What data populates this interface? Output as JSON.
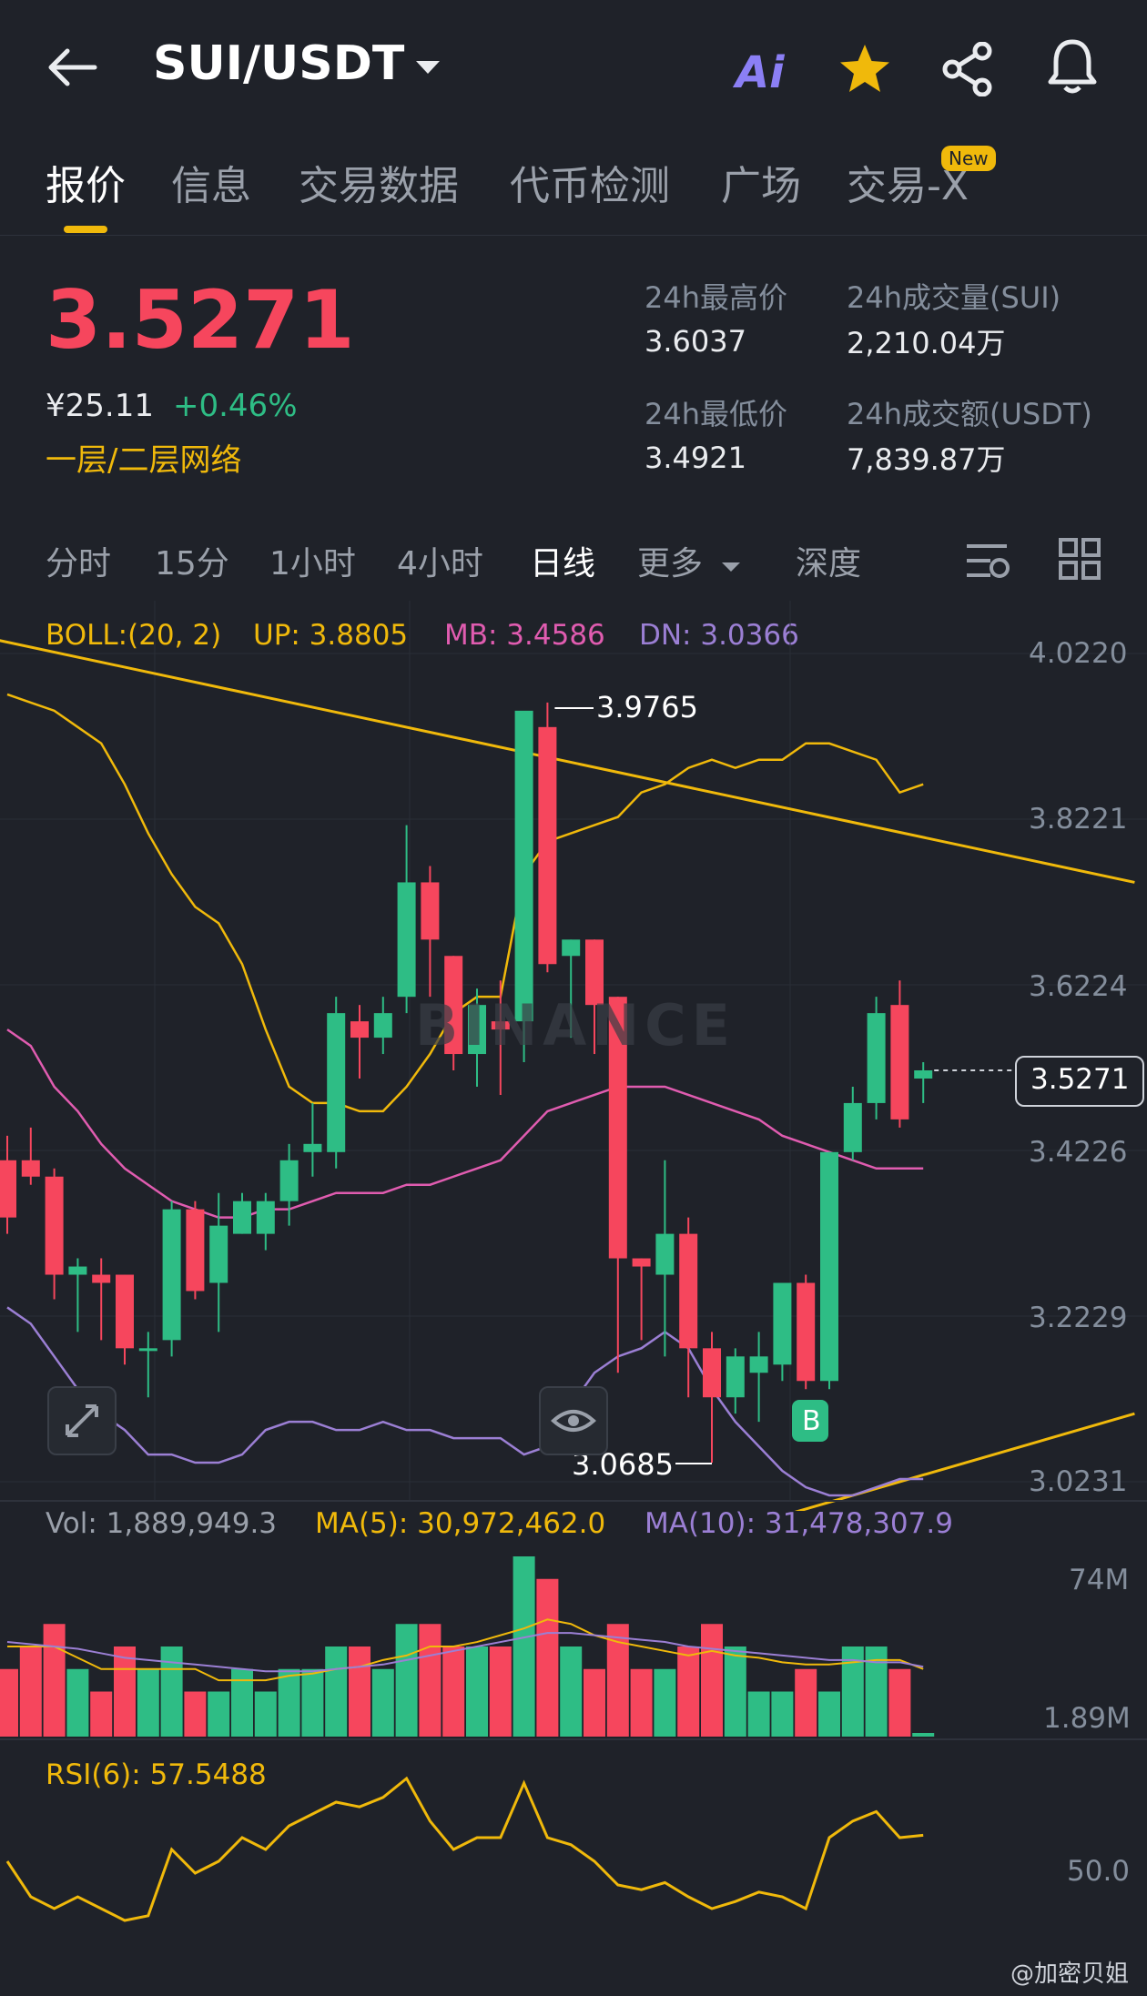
{
  "header": {
    "pair": "SUI/USDT",
    "ai_label": "Ai"
  },
  "tabs": [
    {
      "label": "报价",
      "active": true
    },
    {
      "label": "信息"
    },
    {
      "label": "交易数据"
    },
    {
      "label": "代币检测"
    },
    {
      "label": "广场"
    },
    {
      "label": "交易-X"
    }
  ],
  "new_badge": "New",
  "ticker": {
    "price": "3.5271",
    "cny": "¥25.11",
    "change": "+0.46%",
    "network": "一层/二层网络",
    "high_label": "24h最高价",
    "high_value": "3.6037",
    "low_label": "24h最低价",
    "low_value": "3.4921",
    "vol_sui_label": "24h成交量(SUI)",
    "vol_sui_value": "2,210.04万",
    "vol_usdt_label": "24h成交额(USDT)",
    "vol_usdt_value": "7,839.87万"
  },
  "timeframes": [
    {
      "label": "分时"
    },
    {
      "label": "15分"
    },
    {
      "label": "1小时"
    },
    {
      "label": "4小时"
    },
    {
      "label": "日线",
      "active": true
    },
    {
      "label": "更多"
    },
    {
      "label": "深度"
    }
  ],
  "boll": {
    "label": "BOLL:(20, 2)",
    "up": "UP: 3.8805",
    "mb": "MB: 3.4586",
    "dn": "DN: 3.0366"
  },
  "price_axis": [
    "4.0220",
    "3.8221",
    "3.6224",
    "3.4226",
    "3.2229",
    "3.0231"
  ],
  "current_price_tag": "3.5271",
  "annotations": {
    "high": "3.9765",
    "low": "3.0685",
    "buy_marker": "B"
  },
  "watermark_text": "BINANCE",
  "volume": {
    "vol": "Vol: 1,889,949.3",
    "ma5": "MA(5): 30,972,462.0",
    "ma10": "MA(10): 31,478,307.9",
    "axis_top": "74M",
    "axis_bottom": "1.89M"
  },
  "rsi": {
    "label": "RSI(6): 57.5488",
    "axis_mid": "50.0"
  },
  "footer_watermark": "@加密贝姐",
  "colors": {
    "up": "#2ebd85",
    "down": "#f6465d",
    "accent": "#f0b90b",
    "mb": "#e05cb0",
    "dn": "#9b7fd4",
    "background": "#1f2229"
  },
  "chart_data": {
    "type": "candlestick",
    "ohlc": [
      {
        "o": 3.42,
        "h": 3.45,
        "c": 3.35,
        "l": 3.33
      },
      {
        "o": 3.42,
        "h": 3.46,
        "c": 3.4,
        "l": 3.39
      },
      {
        "o": 3.4,
        "h": 3.41,
        "c": 3.28,
        "l": 3.25
      },
      {
        "o": 3.28,
        "h": 3.3,
        "c": 3.29,
        "l": 3.21
      },
      {
        "o": 3.28,
        "h": 3.3,
        "c": 3.27,
        "l": 3.2
      },
      {
        "o": 3.28,
        "h": 3.28,
        "c": 3.19,
        "l": 3.17
      },
      {
        "o": 3.19,
        "h": 3.21,
        "c": 3.19,
        "l": 3.13
      },
      {
        "o": 3.2,
        "h": 3.37,
        "c": 3.36,
        "l": 3.18
      },
      {
        "o": 3.36,
        "h": 3.37,
        "c": 3.26,
        "l": 3.25
      },
      {
        "o": 3.27,
        "h": 3.38,
        "c": 3.34,
        "l": 3.21
      },
      {
        "o": 3.33,
        "h": 3.38,
        "c": 3.37,
        "l": 3.33
      },
      {
        "o": 3.33,
        "h": 3.38,
        "c": 3.37,
        "l": 3.31
      },
      {
        "o": 3.37,
        "h": 3.44,
        "c": 3.42,
        "l": 3.34
      },
      {
        "o": 3.43,
        "h": 3.49,
        "c": 3.44,
        "l": 3.4
      },
      {
        "o": 3.43,
        "h": 3.62,
        "c": 3.6,
        "l": 3.41
      },
      {
        "o": 3.59,
        "h": 3.61,
        "c": 3.57,
        "l": 3.52
      },
      {
        "o": 3.57,
        "h": 3.62,
        "c": 3.6,
        "l": 3.55
      },
      {
        "o": 3.62,
        "h": 3.83,
        "c": 3.76,
        "l": 3.6
      },
      {
        "o": 3.76,
        "h": 3.78,
        "c": 3.69,
        "l": 3.62
      },
      {
        "o": 3.67,
        "h": 3.67,
        "c": 3.55,
        "l": 3.53
      },
      {
        "o": 3.55,
        "h": 3.63,
        "c": 3.61,
        "l": 3.51
      },
      {
        "o": 3.59,
        "h": 3.64,
        "c": 3.58,
        "l": 3.5
      },
      {
        "o": 3.59,
        "h": 3.96,
        "c": 3.97,
        "l": 3.54
      },
      {
        "o": 3.95,
        "h": 3.98,
        "c": 3.66,
        "l": 3.65
      },
      {
        "o": 3.67,
        "h": 3.69,
        "c": 3.69,
        "l": 3.57
      },
      {
        "o": 3.69,
        "h": 3.69,
        "c": 3.61,
        "l": 3.55
      },
      {
        "o": 3.62,
        "h": 3.62,
        "c": 3.3,
        "l": 3.16
      },
      {
        "o": 3.3,
        "h": 3.3,
        "c": 3.29,
        "l": 3.2
      },
      {
        "o": 3.28,
        "h": 3.42,
        "c": 3.33,
        "l": 3.18
      },
      {
        "o": 3.33,
        "h": 3.35,
        "c": 3.19,
        "l": 3.13
      },
      {
        "o": 3.19,
        "h": 3.21,
        "c": 3.13,
        "l": 3.05
      },
      {
        "o": 3.13,
        "h": 3.19,
        "c": 3.18,
        "l": 3.11
      },
      {
        "o": 3.16,
        "h": 3.21,
        "c": 3.18,
        "l": 3.1
      },
      {
        "o": 3.17,
        "h": 3.27,
        "c": 3.27,
        "l": 3.15
      },
      {
        "o": 3.27,
        "h": 3.28,
        "c": 3.15,
        "l": 3.14
      },
      {
        "o": 3.15,
        "h": 3.43,
        "c": 3.43,
        "l": 3.14
      },
      {
        "o": 3.43,
        "h": 3.51,
        "c": 3.49,
        "l": 3.42
      },
      {
        "o": 3.49,
        "h": 3.62,
        "c": 3.6,
        "l": 3.47
      },
      {
        "o": 3.61,
        "h": 3.64,
        "c": 3.47,
        "l": 3.46
      },
      {
        "o": 3.52,
        "h": 3.54,
        "c": 3.53,
        "l": 3.49
      }
    ],
    "boll_up": [
      3.99,
      3.98,
      3.97,
      3.95,
      3.93,
      3.88,
      3.82,
      3.77,
      3.73,
      3.71,
      3.66,
      3.58,
      3.51,
      3.49,
      3.49,
      3.48,
      3.48,
      3.51,
      3.55,
      3.6,
      3.62,
      3.62,
      3.77,
      3.81,
      3.82,
      3.83,
      3.84,
      3.87,
      3.88,
      3.9,
      3.91,
      3.9,
      3.91,
      3.91,
      3.93,
      3.93,
      3.92,
      3.91,
      3.87,
      3.88
    ],
    "boll_mb": [
      3.58,
      3.56,
      3.51,
      3.48,
      3.44,
      3.41,
      3.39,
      3.37,
      3.36,
      3.35,
      3.35,
      3.36,
      3.36,
      3.37,
      3.38,
      3.38,
      3.38,
      3.39,
      3.39,
      3.4,
      3.41,
      3.42,
      3.45,
      3.48,
      3.49,
      3.5,
      3.51,
      3.51,
      3.51,
      3.5,
      3.49,
      3.48,
      3.47,
      3.45,
      3.44,
      3.43,
      3.42,
      3.41,
      3.41,
      3.41
    ],
    "boll_dn": [
      3.24,
      3.22,
      3.18,
      3.14,
      3.11,
      3.09,
      3.06,
      3.06,
      3.05,
      3.05,
      3.06,
      3.09,
      3.1,
      3.1,
      3.09,
      3.09,
      3.1,
      3.09,
      3.09,
      3.08,
      3.08,
      3.08,
      3.06,
      3.07,
      3.12,
      3.16,
      3.18,
      3.19,
      3.21,
      3.19,
      3.14,
      3.1,
      3.07,
      3.04,
      3.02,
      3.01,
      3.01,
      3.02,
      3.03,
      3.03
    ],
    "trend_lines": [
      {
        "x0": -1,
        "y0": 4.06,
        "x1": 48,
        "y1": 3.76
      },
      {
        "x0": 30,
        "y0": 2.96,
        "x1": 48,
        "y1": 3.11
      }
    ],
    "y_range": [
      3.02,
      4.04
    ],
    "volume": [
      3,
      4,
      5,
      3,
      2,
      4,
      3,
      4,
      2,
      2,
      3,
      2,
      3,
      3,
      4,
      4,
      3,
      5,
      5,
      4,
      4,
      4,
      8,
      7,
      4,
      3,
      5,
      3,
      3,
      4,
      5,
      4,
      2,
      2,
      3,
      2,
      4,
      4,
      3,
      0
    ],
    "volume_ma5": [
      4,
      4,
      4,
      3.5,
      3,
      3,
      3,
      3,
      3,
      2.5,
      2.5,
      2.5,
      2.7,
      2.8,
      3,
      3.1,
      3.4,
      3.6,
      4,
      4,
      4.2,
      4.5,
      4.8,
      5.2,
      5,
      4.5,
      4.2,
      4,
      3.8,
      3.6,
      3.8,
      3.6,
      3.5,
      3.3,
      3.2,
      3.2,
      3.3,
      3.4,
      3.4,
      3.0
    ],
    "volume_ma10": [
      4.2,
      4.1,
      4.0,
      3.9,
      3.7,
      3.5,
      3.4,
      3.3,
      3.2,
      3.1,
      3.0,
      2.9,
      2.9,
      2.9,
      3.0,
      3.1,
      3.2,
      3.4,
      3.6,
      3.8,
      4.0,
      4.2,
      4.4,
      4.6,
      4.6,
      4.5,
      4.4,
      4.3,
      4.2,
      4.0,
      3.9,
      3.8,
      3.7,
      3.6,
      3.5,
      3.4,
      3.4,
      3.3,
      3.3,
      3.1
    ],
    "rsi": [
      45,
      30,
      25,
      30,
      25,
      20,
      22,
      50,
      40,
      45,
      55,
      50,
      60,
      65,
      70,
      68,
      72,
      80,
      62,
      50,
      55,
      55,
      78,
      55,
      52,
      45,
      35,
      33,
      36,
      30,
      25,
      28,
      32,
      30,
      25,
      55,
      62,
      66,
      55,
      56
    ]
  }
}
